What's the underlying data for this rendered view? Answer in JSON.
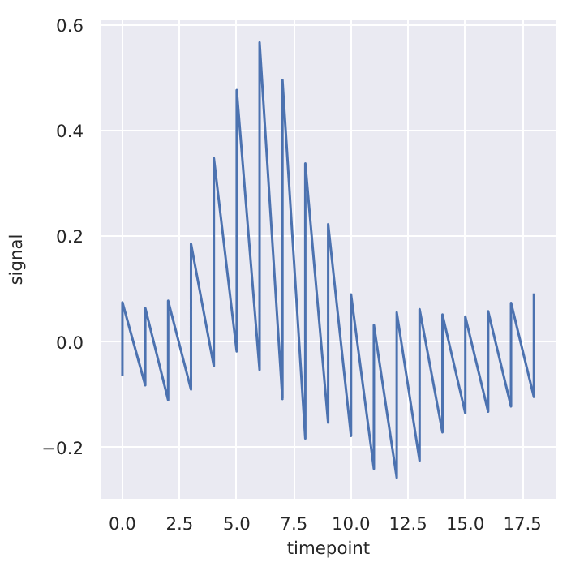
{
  "chart_data": {
    "type": "line",
    "xlabel": "timepoint",
    "ylabel": "signal",
    "x": [
      0,
      0,
      1,
      1,
      2,
      2,
      3,
      3,
      4,
      4,
      5,
      5,
      6,
      6,
      7,
      7,
      8,
      8,
      9,
      9,
      10,
      10,
      11,
      11,
      12,
      12,
      13,
      13,
      14,
      14,
      15,
      15,
      16,
      16,
      17,
      17,
      18,
      18
    ],
    "series": [
      {
        "color": "#4c72b0",
        "values": [
          -0.064,
          0.075,
          -0.082,
          0.064,
          -0.11,
          0.078,
          -0.09,
          0.186,
          -0.046,
          0.348,
          -0.018,
          0.477,
          -0.053,
          0.567,
          -0.108,
          0.496,
          -0.183,
          0.338,
          -0.153,
          0.223,
          -0.178,
          0.09,
          -0.24,
          0.032,
          -0.257,
          0.056,
          -0.225,
          0.062,
          -0.171,
          0.052,
          -0.135,
          0.048,
          -0.132,
          0.058,
          -0.122,
          0.074,
          -0.104,
          0.092
        ]
      }
    ],
    "xlim": [
      -0.92,
      18.95
    ],
    "ylim": [
      -0.297,
      0.609
    ],
    "xticks": [
      {
        "value": 0,
        "label": "0.0"
      },
      {
        "value": 2.5,
        "label": "2.5"
      },
      {
        "value": 5,
        "label": "5.0"
      },
      {
        "value": 7.5,
        "label": "7.5"
      },
      {
        "value": 10,
        "label": "10.0"
      },
      {
        "value": 12.5,
        "label": "12.5"
      },
      {
        "value": 15,
        "label": "15.0"
      },
      {
        "value": 17.5,
        "label": "17.5"
      }
    ],
    "yticks": [
      {
        "value": -0.2,
        "label": "−0.2"
      },
      {
        "value": 0,
        "label": "0.0"
      },
      {
        "value": 0.2,
        "label": "0.2"
      },
      {
        "value": 0.4,
        "label": "0.4"
      },
      {
        "value": 0.6,
        "label": "0.6"
      }
    ],
    "grid": true
  }
}
